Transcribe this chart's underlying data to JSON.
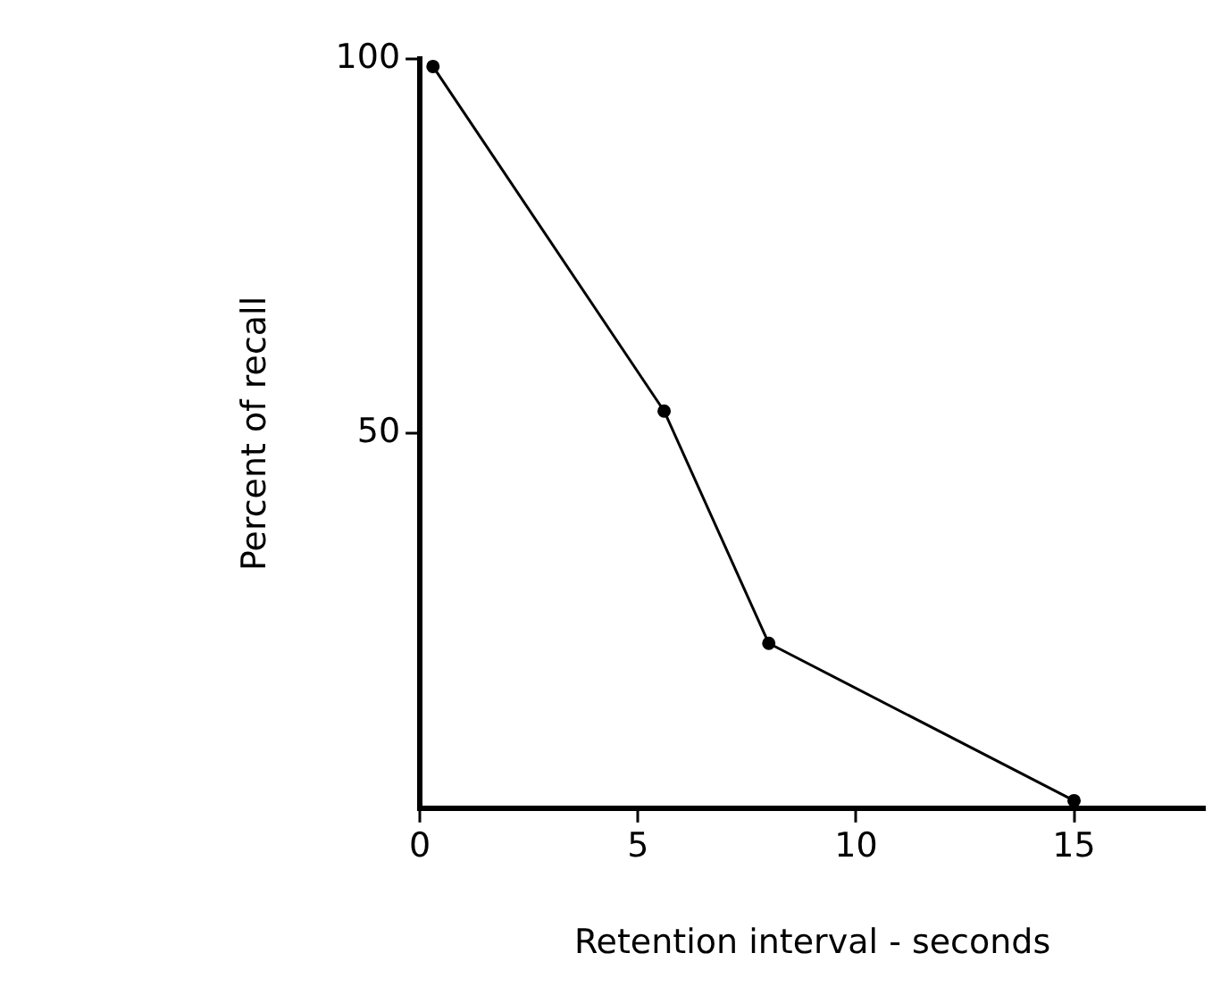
{
  "chart_data": {
    "type": "line",
    "xlabel": "Retention interval - seconds",
    "ylabel": "Percent of recall",
    "x": [
      0.3,
      5.6,
      8,
      15
    ],
    "series": [
      {
        "color": "#000000",
        "values": [
          99,
          53,
          22,
          1
        ]
      }
    ],
    "xlim": [
      0,
      18
    ],
    "xticks": [
      0,
      5,
      10,
      15
    ],
    "ylim": [
      0,
      100
    ],
    "yticks": [
      50,
      100
    ],
    "grid": false,
    "legend": false,
    "marker": "circle",
    "line_style": "solid"
  }
}
